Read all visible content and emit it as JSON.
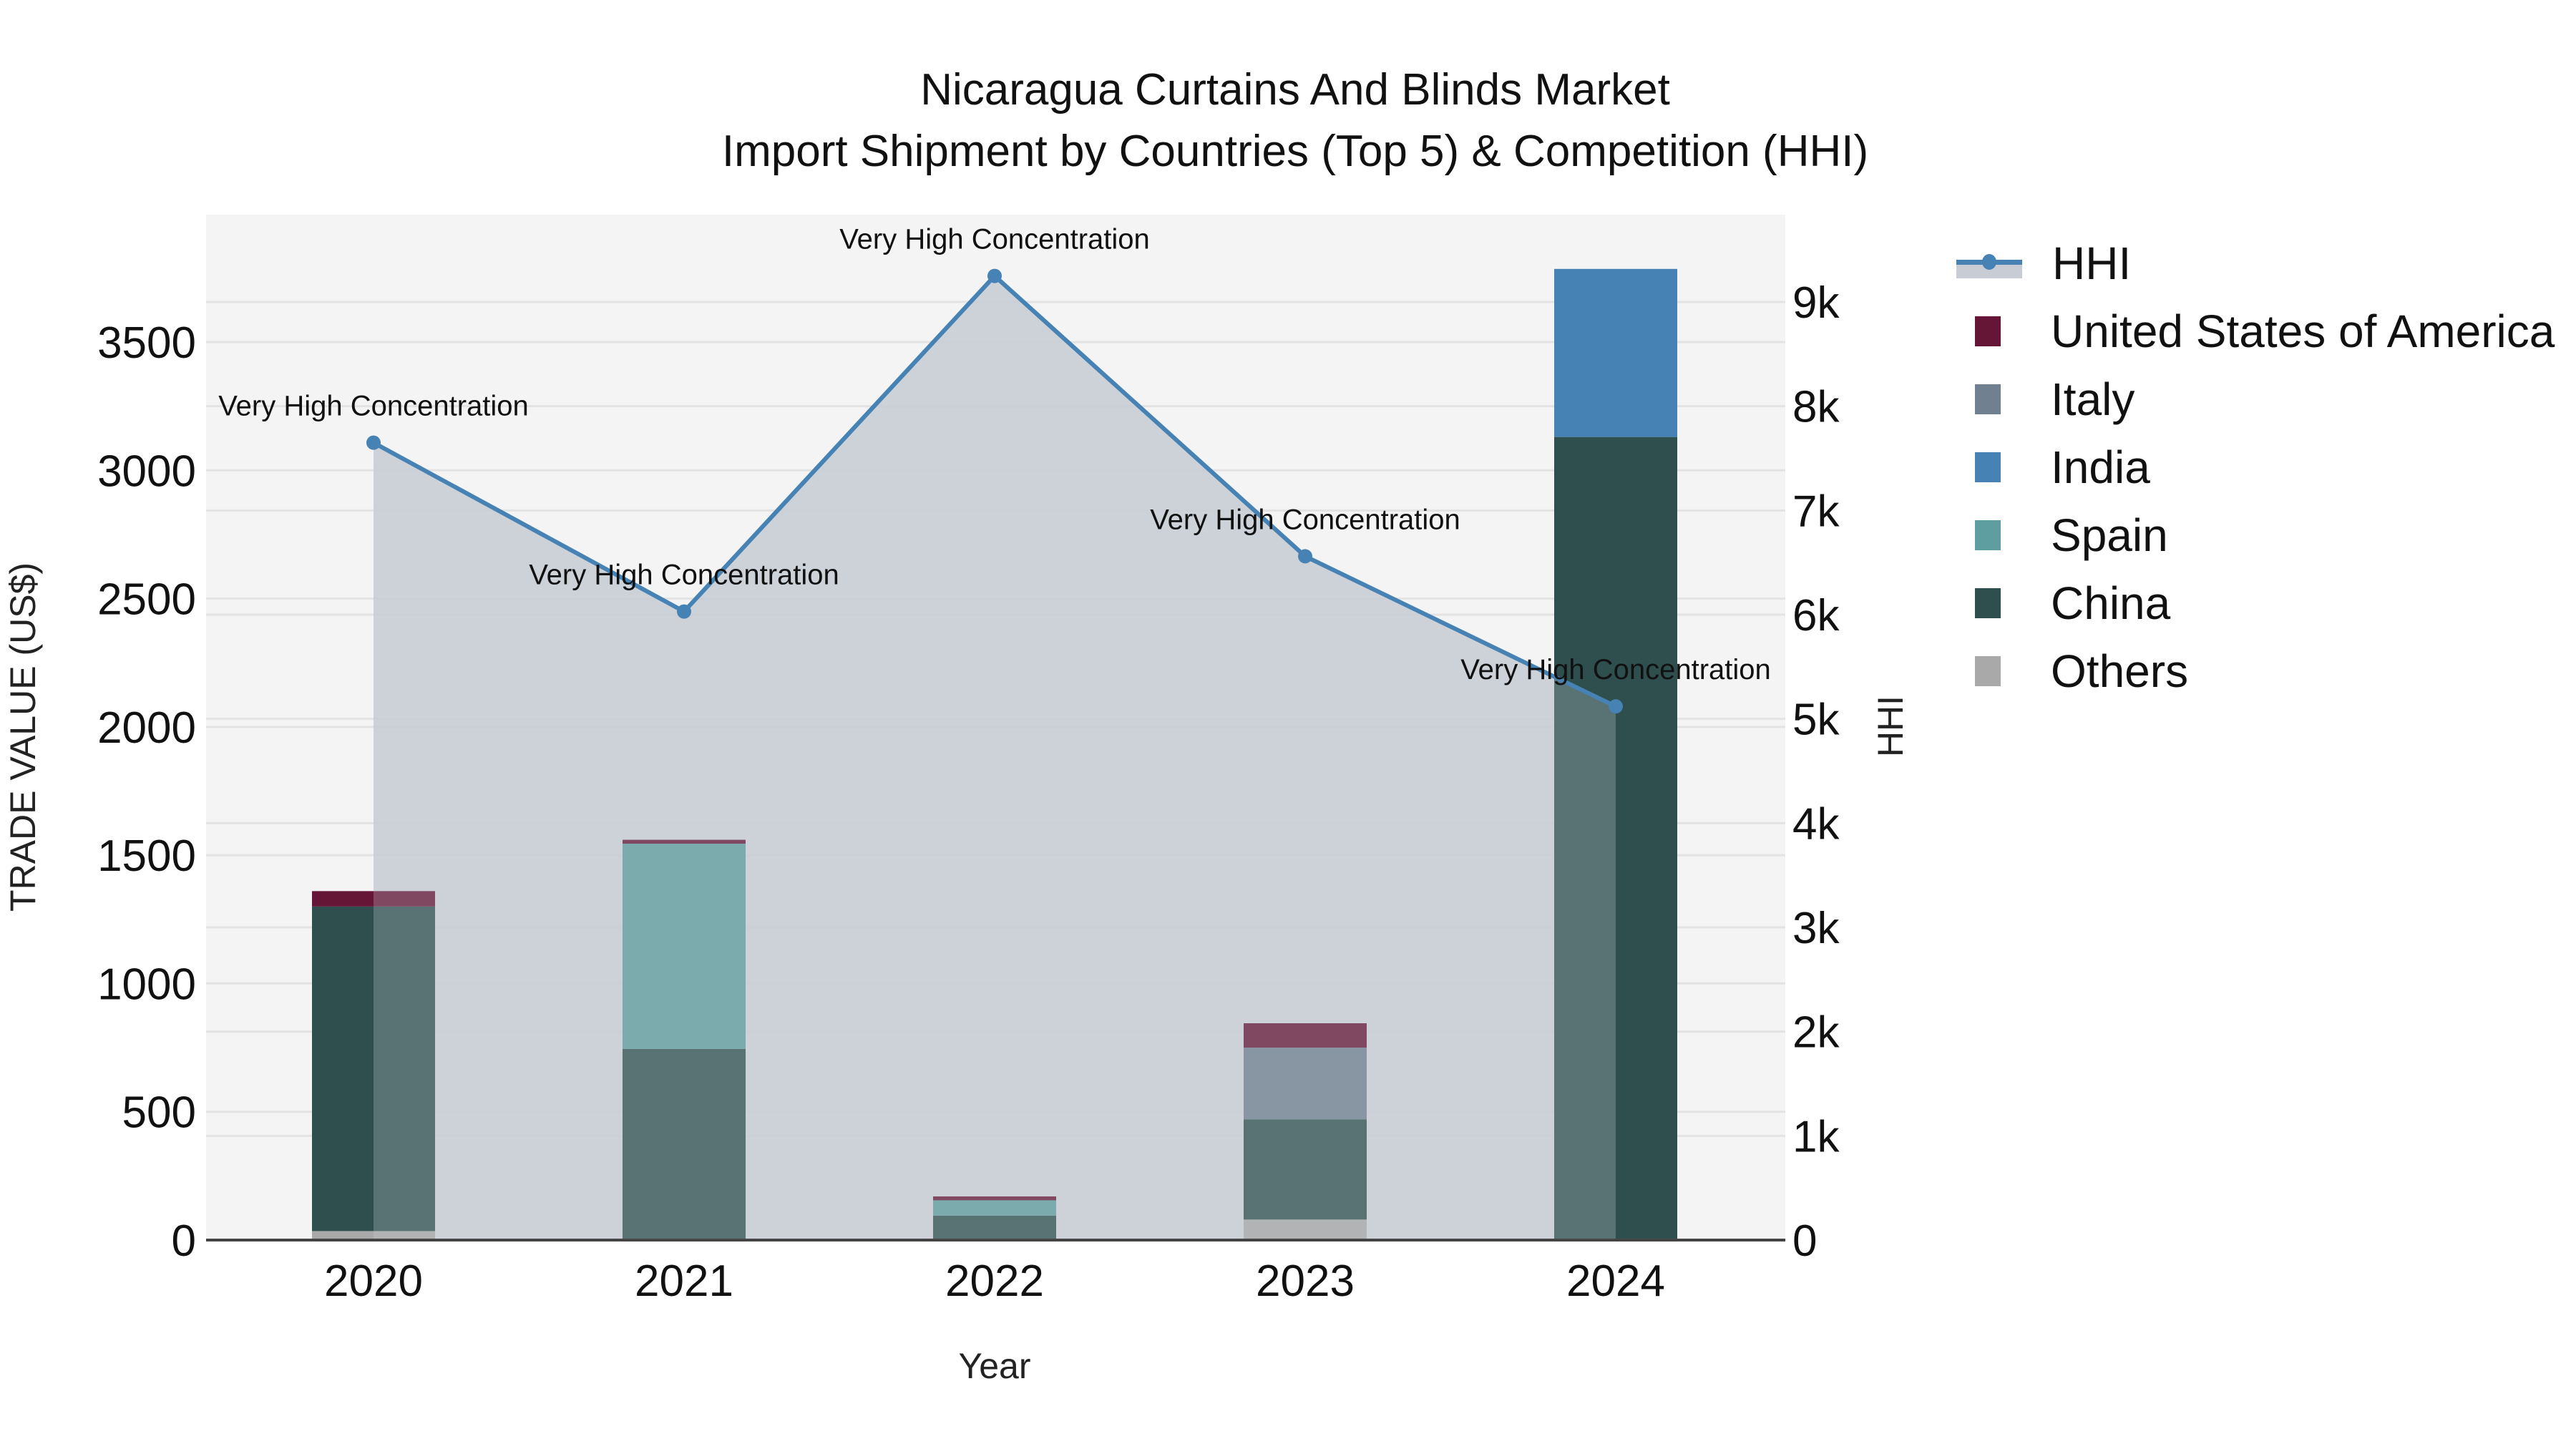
{
  "title": {
    "line1": "Nicaragua Curtains And Blinds Market",
    "line2": "Import Shipment by Countries (Top 5) & Competition (HHI)"
  },
  "axes": {
    "x_title": "Year",
    "y_title": "TRADE VALUE (US$)",
    "y2_title": "HHI"
  },
  "legend": {
    "items": [
      {
        "label": "HHI",
        "type": "line",
        "color": "#4682b4",
        "fill": "#c8ccd5"
      },
      {
        "label": "United States of America",
        "type": "bar",
        "color": "#651535"
      },
      {
        "label": "Italy",
        "type": "bar",
        "color": "#708090"
      },
      {
        "label": "India",
        "type": "bar",
        "color": "#4682b4"
      },
      {
        "label": "Spain",
        "type": "bar",
        "color": "#5f9ea0"
      },
      {
        "label": "China",
        "type": "bar",
        "color": "#2f4f4f"
      },
      {
        "label": "Others",
        "type": "bar",
        "color": "#a9a9a9"
      }
    ]
  },
  "colors": {
    "plot_bg": "#f4f4f4",
    "grid": "#e3e3e3",
    "hhi_fill": "#c8ccd5",
    "hhi_line": "#4682b4",
    "axis_line": "#444444"
  },
  "chart_data": {
    "type": "bar",
    "stacked": true,
    "title": "Nicaragua Curtains And Blinds Market\nImport Shipment by Countries (Top 5) & Competition (HHI)",
    "xlabel": "Year",
    "ylabel": "TRADE VALUE (US$)",
    "y2label": "HHI",
    "categories": [
      "2020",
      "2021",
      "2022",
      "2023",
      "2024"
    ],
    "ylim": [
      0,
      3950
    ],
    "yticks": [
      0,
      500,
      1000,
      1500,
      2000,
      2500,
      3000,
      3500
    ],
    "y2lim": [
      0,
      9900
    ],
    "y2ticks": [
      0,
      1000,
      2000,
      3000,
      4000,
      5000,
      6000,
      7000,
      8000,
      9000
    ],
    "y2ticklabels": [
      "0",
      "1k",
      "2k",
      "3k",
      "4k",
      "5k",
      "6k",
      "7k",
      "8k",
      "9k"
    ],
    "grid": true,
    "legend_position": "right",
    "series": [
      {
        "name": "Others",
        "color": "#a9a9a9",
        "values": [
          35,
          0,
          0,
          80,
          0
        ]
      },
      {
        "name": "China",
        "color": "#2f4f4f",
        "values": [
          1265,
          745,
          95,
          390,
          3130
        ]
      },
      {
        "name": "Spain",
        "color": "#5f9ea0",
        "values": [
          0,
          800,
          60,
          0,
          0
        ]
      },
      {
        "name": "India",
        "color": "#4682b4",
        "values": [
          0,
          0,
          0,
          0,
          655
        ]
      },
      {
        "name": "Italy",
        "color": "#708090",
        "values": [
          0,
          0,
          0,
          280,
          0
        ]
      },
      {
        "name": "United States of America",
        "color": "#651535",
        "values": [
          60,
          15,
          15,
          95,
          0
        ]
      }
    ],
    "line_series": {
      "name": "HHI",
      "axis": "y2",
      "color": "#4682b4",
      "area_fill": "#c8ccd5",
      "values": [
        7650,
        6030,
        9250,
        6560,
        5120
      ],
      "annotations": [
        "Very High Concentration",
        "Very High Concentration",
        "Very High Concentration",
        "Very High Concentration",
        "Very High Concentration"
      ]
    }
  }
}
